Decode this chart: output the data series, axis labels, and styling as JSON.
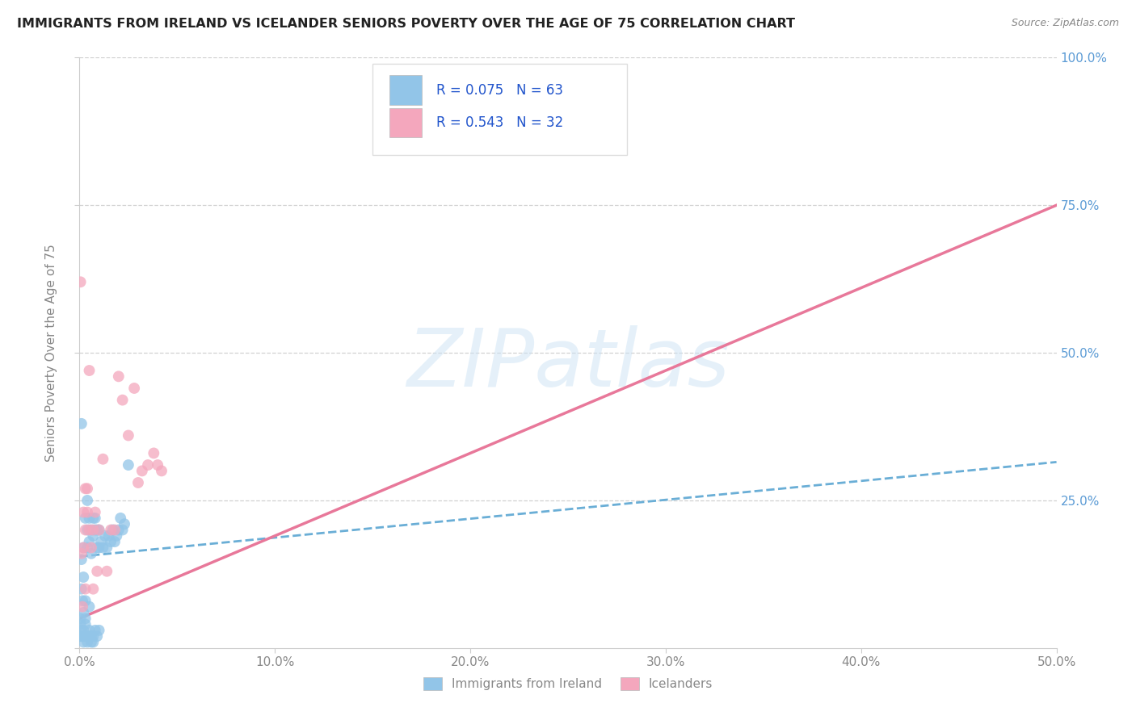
{
  "title": "IMMIGRANTS FROM IRELAND VS ICELANDER SENIORS POVERTY OVER THE AGE OF 75 CORRELATION CHART",
  "source": "Source: ZipAtlas.com",
  "ylabel": "Seniors Poverty Over the Age of 75",
  "xlim": [
    0,
    0.5
  ],
  "ylim": [
    0,
    1.0
  ],
  "blue_color": "#92C5E8",
  "pink_color": "#F4A7BD",
  "blue_line_color": "#6aaed6",
  "pink_line_color": "#e8789a",
  "legend_text_color": "#2255cc",
  "label_blue": "Immigrants from Ireland",
  "label_pink": "Icelanders",
  "watermark": "ZIPatlas",
  "blue_trend_x0": 0.0,
  "blue_trend_y0": 0.155,
  "blue_trend_x1": 0.5,
  "blue_trend_y1": 0.315,
  "pink_trend_x0": 0.0,
  "pink_trend_y0": 0.05,
  "pink_trend_x1": 0.5,
  "pink_trend_y1": 0.75,
  "blue_x": [
    0.0005,
    0.001,
    0.001,
    0.001,
    0.0015,
    0.002,
    0.002,
    0.002,
    0.003,
    0.003,
    0.003,
    0.004,
    0.004,
    0.004,
    0.005,
    0.005,
    0.005,
    0.006,
    0.006,
    0.007,
    0.007,
    0.008,
    0.008,
    0.009,
    0.009,
    0.01,
    0.01,
    0.011,
    0.012,
    0.013,
    0.014,
    0.015,
    0.016,
    0.017,
    0.018,
    0.019,
    0.02,
    0.021,
    0.022,
    0.023,
    0.001,
    0.001,
    0.002,
    0.002,
    0.003,
    0.003,
    0.004,
    0.005,
    0.006,
    0.007,
    0.008,
    0.009,
    0.01,
    0.0005,
    0.0005,
    0.001,
    0.002,
    0.003,
    0.004,
    0.005,
    0.006,
    0.007,
    0.025
  ],
  "blue_y": [
    0.05,
    0.38,
    0.1,
    0.15,
    0.08,
    0.06,
    0.12,
    0.17,
    0.05,
    0.08,
    0.22,
    0.17,
    0.2,
    0.25,
    0.18,
    0.07,
    0.22,
    0.16,
    0.2,
    0.19,
    0.22,
    0.2,
    0.22,
    0.17,
    0.2,
    0.17,
    0.2,
    0.18,
    0.17,
    0.19,
    0.17,
    0.19,
    0.18,
    0.2,
    0.18,
    0.19,
    0.2,
    0.22,
    0.2,
    0.21,
    0.02,
    0.03,
    0.02,
    0.03,
    0.02,
    0.04,
    0.02,
    0.03,
    0.02,
    0.02,
    0.03,
    0.02,
    0.03,
    0.02,
    0.04,
    0.02,
    0.01,
    0.02,
    0.01,
    0.02,
    0.01,
    0.01,
    0.31
  ],
  "pink_x": [
    0.0005,
    0.001,
    0.0015,
    0.002,
    0.002,
    0.003,
    0.003,
    0.004,
    0.004,
    0.005,
    0.005,
    0.006,
    0.007,
    0.008,
    0.009,
    0.01,
    0.012,
    0.014,
    0.016,
    0.018,
    0.02,
    0.022,
    0.025,
    0.028,
    0.03,
    0.032,
    0.035,
    0.038,
    0.04,
    0.042,
    0.003,
    0.007
  ],
  "pink_y": [
    0.62,
    0.16,
    0.07,
    0.17,
    0.23,
    0.2,
    0.27,
    0.23,
    0.27,
    0.2,
    0.47,
    0.17,
    0.2,
    0.23,
    0.13,
    0.2,
    0.32,
    0.13,
    0.2,
    0.2,
    0.46,
    0.42,
    0.36,
    0.44,
    0.28,
    0.3,
    0.31,
    0.33,
    0.31,
    0.3,
    0.1,
    0.1
  ]
}
